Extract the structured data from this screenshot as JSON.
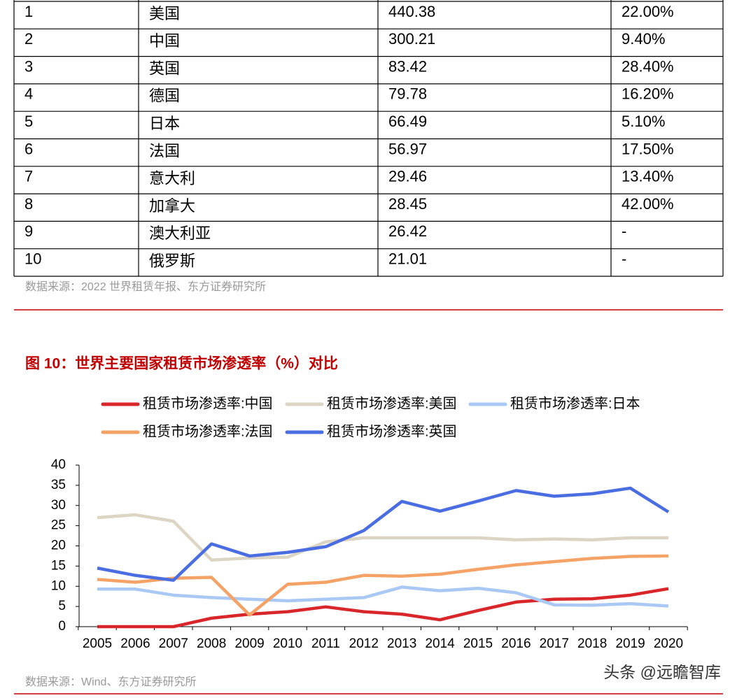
{
  "table": {
    "rows": [
      [
        "1",
        "美国",
        "440.38",
        "22.00%"
      ],
      [
        "2",
        "中国",
        "300.21",
        "9.40%"
      ],
      [
        "3",
        "英国",
        "83.42",
        "28.40%"
      ],
      [
        "4",
        "德国",
        "79.78",
        "16.20%"
      ],
      [
        "5",
        "日本",
        "66.49",
        "5.10%"
      ],
      [
        "6",
        "法国",
        "56.97",
        "17.50%"
      ],
      [
        "7",
        "意大利",
        "29.46",
        "13.40%"
      ],
      [
        "8",
        "加拿大",
        "28.45",
        "42.00%"
      ],
      [
        "9",
        "澳大利亚",
        "26.42",
        "-"
      ],
      [
        "10",
        "俄罗斯",
        "21.01",
        "-"
      ]
    ]
  },
  "table_source": "数据来源：2022 世界租赁年报、东方证券研究所",
  "chart_data": {
    "type": "line",
    "title": "图 10：世界主要国家租赁市场渗透率（%）对比",
    "categories": [
      "2005",
      "2006",
      "2007",
      "2008",
      "2009",
      "2010",
      "2011",
      "2012",
      "2013",
      "2014",
      "2015",
      "2016",
      "2017",
      "2018",
      "2019",
      "2020"
    ],
    "series": [
      {
        "name": "租赁市场渗透率:中国",
        "color": "#d9262a",
        "values": [
          0,
          0,
          0,
          2.1,
          3.1,
          3.7,
          4.9,
          3.7,
          3.1,
          1.7,
          4,
          6.1,
          6.8,
          6.9,
          7.8,
          9.4
        ]
      },
      {
        "name": "租赁市场渗透率:美国",
        "color": "#ddd5c3",
        "values": [
          27,
          27.7,
          26.1,
          16.5,
          17,
          17.2,
          21,
          22,
          22,
          22,
          22,
          21.5,
          21.7,
          21.5,
          22,
          22
        ]
      },
      {
        "name": "租赁市场渗透率:日本",
        "color": "#a9c9f4",
        "values": [
          9.3,
          9.3,
          7.8,
          7.2,
          6.8,
          6.4,
          6.8,
          7.2,
          9.8,
          8.9,
          9.5,
          8.4,
          5.4,
          5.3,
          5.7,
          5.1
        ]
      },
      {
        "name": "租赁市场渗透率:法国",
        "color": "#f4a266",
        "values": [
          11.7,
          11,
          12,
          12.2,
          2.9,
          10.5,
          11,
          12.7,
          12.5,
          13,
          14.2,
          15.3,
          16.1,
          16.9,
          17.4,
          17.5
        ]
      },
      {
        "name": "租赁市场渗透率:英国",
        "color": "#4a6de2",
        "values": [
          14.5,
          12.7,
          11.5,
          20.5,
          17.5,
          18.4,
          19.8,
          23.8,
          31,
          28.6,
          31.1,
          33.7,
          32.3,
          32.9,
          34.3,
          28.4
        ]
      }
    ],
    "ylim": [
      0,
      40
    ],
    "yticks": [
      0,
      5,
      10,
      15,
      20,
      25,
      30,
      35,
      40
    ],
    "grid": false
  },
  "chart_source": "数据来源：Wind、东方证券研究所",
  "watermark": "头条 @远瞻智库"
}
